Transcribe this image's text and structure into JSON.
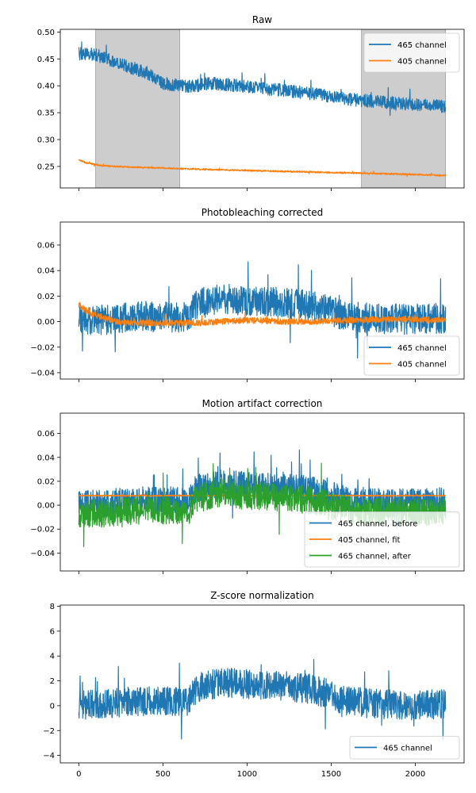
{
  "colors": {
    "blue": "#1f77b4",
    "orange": "#ff7f0e",
    "green": "#2ca02c",
    "shade": "#c0c0c0"
  },
  "chart_data": [
    {
      "type": "line",
      "title": "Raw",
      "xlim": [
        -110,
        2290
      ],
      "ylim": [
        0.21,
        0.505
      ],
      "yticks": [
        0.25,
        0.3,
        0.35,
        0.4,
        0.45,
        0.5
      ],
      "ytick_labels": [
        "0.25",
        "0.30",
        "0.35",
        "0.40",
        "0.45",
        "0.50"
      ],
      "xticks": [
        0,
        500,
        1000,
        1500,
        2000
      ],
      "xtick_labels": [
        "",
        "",
        "",
        "",
        ""
      ],
      "shaded_regions": [
        [
          100,
          600
        ],
        [
          1680,
          2180
        ]
      ],
      "legend": "top-right",
      "series": [
        {
          "name": "465 channel",
          "color": "#1f77b4",
          "x": [
            0,
            100,
            250,
            400,
            500,
            650,
            800,
            1000,
            1200,
            1400,
            1600,
            1800,
            2000,
            2180
          ],
          "values": [
            0.46,
            0.458,
            0.44,
            0.425,
            0.405,
            0.398,
            0.405,
            0.398,
            0.392,
            0.385,
            0.375,
            0.37,
            0.365,
            0.362
          ],
          "noise": 0.012
        },
        {
          "name": "405 channel",
          "color": "#ff7f0e",
          "x": [
            0,
            50,
            150,
            300,
            500,
            800,
            1200,
            1600,
            2000,
            2180
          ],
          "values": [
            0.262,
            0.256,
            0.251,
            0.249,
            0.247,
            0.244,
            0.241,
            0.238,
            0.235,
            0.233
          ],
          "noise": 0.0015
        }
      ]
    },
    {
      "type": "line",
      "title": "Photobleaching corrected",
      "xlim": [
        -110,
        2290
      ],
      "ylim": [
        -0.045,
        0.078
      ],
      "yticks": [
        -0.04,
        -0.02,
        0.0,
        0.02,
        0.04,
        0.06
      ],
      "ytick_labels": [
        "−0.04",
        "−0.02",
        "0.00",
        "0.02",
        "0.04",
        "0.06"
      ],
      "xticks": [
        0,
        500,
        1000,
        1500,
        2000
      ],
      "xtick_labels": [
        "",
        "",
        "",
        "",
        ""
      ],
      "legend": "lower-right",
      "series": [
        {
          "name": "465 channel",
          "color": "#1f77b4",
          "x": [
            0,
            200,
            400,
            650,
            700,
            850,
            1000,
            1200,
            1400,
            1600,
            1800,
            2000,
            2180
          ],
          "values": [
            0.0,
            0.002,
            0.004,
            0.003,
            0.014,
            0.018,
            0.016,
            0.015,
            0.012,
            0.004,
            0.002,
            0.002,
            0.003
          ],
          "noise": 0.012
        },
        {
          "name": "405 channel",
          "color": "#ff7f0e",
          "x": [
            0,
            60,
            150,
            250,
            400,
            700,
            1000,
            1300,
            1600,
            1900,
            2180
          ],
          "values": [
            0.013,
            0.007,
            0.003,
            -0.001,
            -0.001,
            -0.001,
            0.001,
            0.0,
            0.001,
            0.002,
            0.001
          ],
          "noise": 0.0025
        }
      ]
    },
    {
      "type": "line",
      "title": "Motion artifact correction",
      "xlim": [
        -110,
        2290
      ],
      "ylim": [
        -0.055,
        0.077
      ],
      "yticks": [
        -0.04,
        -0.02,
        0.0,
        0.02,
        0.04,
        0.06
      ],
      "ytick_labels": [
        "−0.04",
        "−0.02",
        "0.00",
        "0.02",
        "0.04",
        "0.06"
      ],
      "xticks": [
        0,
        500,
        1000,
        1500,
        2000
      ],
      "xtick_labels": [
        "",
        "",
        "",
        "",
        ""
      ],
      "legend": "lower-right",
      "series": [
        {
          "name": "465 channel, before",
          "color": "#1f77b4",
          "x": [
            0,
            200,
            400,
            650,
            700,
            850,
            1000,
            1200,
            1400,
            1600,
            1800,
            2000,
            2180
          ],
          "values": [
            0.0,
            0.002,
            0.004,
            0.003,
            0.014,
            0.018,
            0.016,
            0.015,
            0.012,
            0.004,
            0.002,
            0.002,
            0.003
          ],
          "noise": 0.012
        },
        {
          "name": "405 channel, fit",
          "color": "#ff7f0e",
          "x": [
            0,
            2180
          ],
          "values": [
            0.008,
            0.008
          ],
          "noise": 0.0005
        },
        {
          "name": "465 channel, after",
          "color": "#2ca02c",
          "x": [
            0,
            200,
            400,
            650,
            700,
            850,
            1000,
            1200,
            1400,
            1600,
            1800,
            2000,
            2180
          ],
          "values": [
            -0.007,
            -0.006,
            -0.004,
            -0.005,
            0.006,
            0.01,
            0.008,
            0.007,
            0.004,
            -0.004,
            -0.006,
            -0.006,
            -0.005
          ],
          "noise": 0.012
        }
      ]
    },
    {
      "type": "line",
      "title": "Z-score normalization",
      "xlim": [
        -110,
        2290
      ],
      "ylim": [
        -4.6,
        8.1
      ],
      "yticks": [
        -4,
        -2,
        0,
        2,
        4,
        6,
        8
      ],
      "ytick_labels": [
        "−4",
        "−2",
        "0",
        "2",
        "4",
        "6",
        "8"
      ],
      "xticks": [
        0,
        500,
        1000,
        1500,
        2000
      ],
      "xtick_labels": [
        "0",
        "500",
        "1000",
        "1500",
        "2000"
      ],
      "legend": "lower-right",
      "series": [
        {
          "name": "465 channel",
          "color": "#1f77b4",
          "x": [
            0,
            200,
            400,
            650,
            700,
            850,
            1000,
            1200,
            1400,
            1600,
            1800,
            2000,
            2180
          ],
          "values": [
            0.0,
            0.2,
            0.4,
            0.3,
            1.4,
            1.9,
            1.7,
            1.6,
            1.3,
            0.4,
            0.1,
            0.0,
            0.2
          ],
          "noise": 1.2
        }
      ]
    }
  ]
}
